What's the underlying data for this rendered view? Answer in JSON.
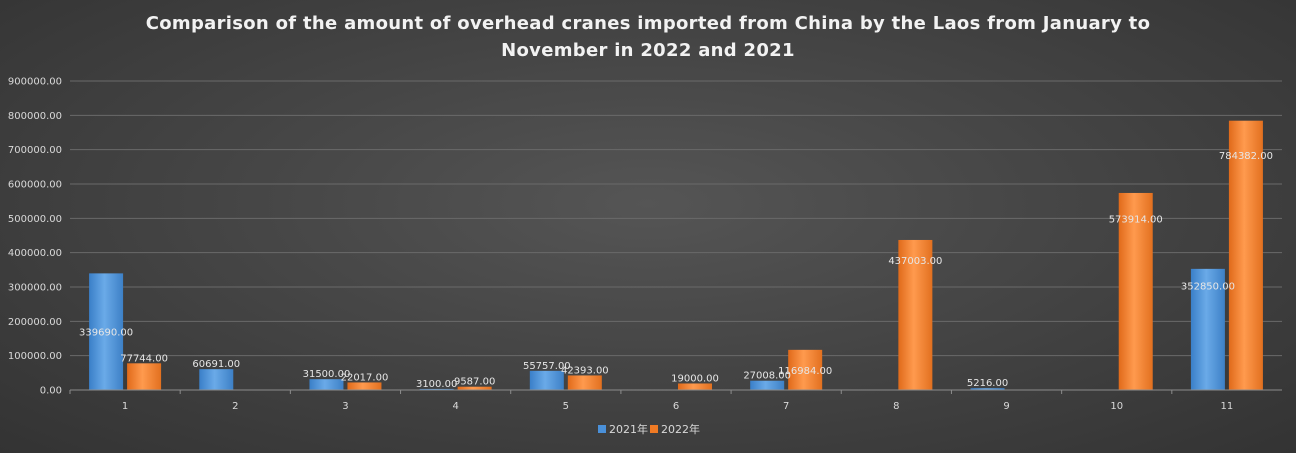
{
  "chart_data": {
    "type": "bar",
    "title": "Comparison of the amount of overhead cranes imported from China by the Laos from January to November in 2022 and 2021",
    "xlabel": "",
    "ylabel": "",
    "categories": [
      "1",
      "2",
      "3",
      "4",
      "5",
      "6",
      "7",
      "8",
      "9",
      "10",
      "11"
    ],
    "series": [
      {
        "name": "2021年",
        "color": "#4a90d9",
        "values": [
          339690,
          60691,
          31500,
          3100,
          55757,
          null,
          27008,
          null,
          5216,
          null,
          352850
        ],
        "labels": [
          "339690.00",
          "60691.00",
          "31500.00",
          "3100.00",
          "55757.00",
          "",
          "27008.00",
          "",
          "5216.00",
          "",
          "352850.00"
        ]
      },
      {
        "name": "2022年",
        "color": "#f07a24",
        "values": [
          77744,
          null,
          22017,
          9587,
          42393,
          19000,
          116984,
          437003,
          null,
          573914,
          784382
        ],
        "labels": [
          "77744.00",
          "",
          "22017.00",
          "9587.00",
          "42393.00",
          "19000.00",
          "116984.00",
          "437003.00",
          "",
          "573914.00",
          "784382.00"
        ]
      }
    ],
    "ylim": [
      0,
      900000
    ],
    "yticks": [
      "0.00",
      "100000.00",
      "200000.00",
      "300000.00",
      "400000.00",
      "500000.00",
      "600000.00",
      "700000.00",
      "800000.00",
      "900000.00"
    ],
    "grid": true,
    "legend_position": "bottom"
  }
}
